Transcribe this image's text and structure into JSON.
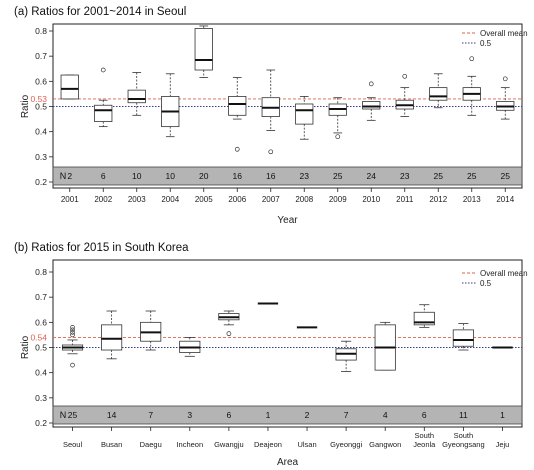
{
  "chart_data": [
    {
      "type": "box",
      "title": "(a) Ratios for 2001~2014 in Seoul",
      "xlabel": "Year",
      "ylabel": "Ratio",
      "ylim": [
        0.2,
        0.8
      ],
      "yticks": [
        "0.2",
        "0.3",
        "0.4",
        "0.5",
        "0.6",
        "0.7",
        "0.8"
      ],
      "mean_label": "0.53",
      "mean_value": 0.53,
      "reference_value": 0.5,
      "legend": {
        "position": "top-right",
        "entries": [
          "Overall mean",
          "0.5"
        ]
      },
      "n_label": "N",
      "categories": [
        "2001",
        "2002",
        "2003",
        "2004",
        "2005",
        "2006",
        "2007",
        "2008",
        "2009",
        "2010",
        "2011",
        "2012",
        "2013",
        "2014"
      ],
      "n": [
        "2",
        "6",
        "10",
        "10",
        "20",
        "16",
        "16",
        "23",
        "25",
        "24",
        "23",
        "25",
        "25",
        "25"
      ],
      "boxes": [
        {
          "low": 0.53,
          "q1": 0.53,
          "median": 0.57,
          "q3": 0.625,
          "high": 0.625,
          "outliers": []
        },
        {
          "low": 0.42,
          "q1": 0.44,
          "median": 0.485,
          "q3": 0.505,
          "high": 0.525,
          "outliers": [
            0.645
          ]
        },
        {
          "low": 0.465,
          "q1": 0.515,
          "median": 0.53,
          "q3": 0.565,
          "high": 0.635,
          "outliers": []
        },
        {
          "low": 0.38,
          "q1": 0.42,
          "median": 0.48,
          "q3": 0.54,
          "high": 0.63,
          "outliers": []
        },
        {
          "low": 0.615,
          "q1": 0.645,
          "median": 0.685,
          "q3": 0.81,
          "high": 0.82,
          "outliers": []
        },
        {
          "low": 0.45,
          "q1": 0.465,
          "median": 0.51,
          "q3": 0.54,
          "high": 0.615,
          "outliers": [
            0.33
          ]
        },
        {
          "low": 0.405,
          "q1": 0.46,
          "median": 0.495,
          "q3": 0.535,
          "high": 0.645,
          "outliers": [
            0.32
          ]
        },
        {
          "low": 0.37,
          "q1": 0.43,
          "median": 0.485,
          "q3": 0.51,
          "high": 0.54,
          "outliers": []
        },
        {
          "low": 0.395,
          "q1": 0.465,
          "median": 0.49,
          "q3": 0.51,
          "high": 0.535,
          "outliers": [
            0.38
          ]
        },
        {
          "low": 0.445,
          "q1": 0.49,
          "median": 0.5,
          "q3": 0.52,
          "high": 0.535,
          "outliers": [
            0.59
          ]
        },
        {
          "low": 0.46,
          "q1": 0.49,
          "median": 0.505,
          "q3": 0.525,
          "high": 0.575,
          "outliers": [
            0.62
          ]
        },
        {
          "low": 0.495,
          "q1": 0.525,
          "median": 0.54,
          "q3": 0.575,
          "high": 0.63,
          "outliers": []
        },
        {
          "low": 0.465,
          "q1": 0.525,
          "median": 0.55,
          "q3": 0.575,
          "high": 0.62,
          "outliers": [
            0.69
          ]
        },
        {
          "low": 0.45,
          "q1": 0.485,
          "median": 0.5,
          "q3": 0.52,
          "high": 0.575,
          "outliers": [
            0.61
          ]
        }
      ]
    },
    {
      "type": "box",
      "title": "(b) Ratios for 2015 in South Korea",
      "xlabel": "Area",
      "ylabel": "Ratio",
      "ylim": [
        0.2,
        0.8
      ],
      "yticks": [
        "0.2",
        "0.3",
        "0.4",
        "0.5",
        "0.6",
        "0.7",
        "0.8"
      ],
      "mean_label": "0.54",
      "mean_value": 0.54,
      "reference_value": 0.5,
      "legend": {
        "position": "top-right",
        "entries": [
          "Overall mean",
          "0.5"
        ]
      },
      "n_label": "N",
      "categories": [
        "Seoul",
        "Busan",
        "Daegu",
        "Incheon",
        "Gwangju",
        "Deajeon",
        "Ulsan",
        "Gyeonggi",
        "Gangwon",
        "South Jeonla",
        "South Gyeongsang",
        "Jeju"
      ],
      "n": [
        "25",
        "14",
        "7",
        "3",
        "6",
        "1",
        "2",
        "7",
        "4",
        "6",
        "11",
        "1"
      ],
      "boxes": [
        {
          "low": 0.475,
          "q1": 0.49,
          "median": 0.5,
          "q3": 0.51,
          "high": 0.53,
          "outliers": [
            0.43,
            0.55,
            0.56,
            0.57,
            0.58
          ]
        },
        {
          "low": 0.455,
          "q1": 0.49,
          "median": 0.535,
          "q3": 0.59,
          "high": 0.645,
          "outliers": []
        },
        {
          "low": 0.49,
          "q1": 0.525,
          "median": 0.56,
          "q3": 0.6,
          "high": 0.645,
          "outliers": []
        },
        {
          "low": 0.465,
          "q1": 0.48,
          "median": 0.5,
          "q3": 0.525,
          "high": 0.54,
          "outliers": []
        },
        {
          "low": 0.59,
          "q1": 0.61,
          "median": 0.62,
          "q3": 0.635,
          "high": 0.645,
          "outliers": [
            0.555
          ]
        },
        {
          "low": 0.675,
          "q1": 0.675,
          "median": 0.675,
          "q3": 0.675,
          "high": 0.675,
          "outliers": []
        },
        {
          "low": 0.58,
          "q1": 0.58,
          "median": 0.58,
          "q3": 0.58,
          "high": 0.58,
          "outliers": []
        },
        {
          "low": 0.405,
          "q1": 0.45,
          "median": 0.475,
          "q3": 0.495,
          "high": 0.525,
          "outliers": []
        },
        {
          "low": 0.41,
          "q1": 0.41,
          "median": 0.5,
          "q3": 0.59,
          "high": 0.6,
          "outliers": []
        },
        {
          "low": 0.58,
          "q1": 0.59,
          "median": 0.6,
          "q3": 0.64,
          "high": 0.67,
          "outliers": []
        },
        {
          "low": 0.49,
          "q1": 0.505,
          "median": 0.53,
          "q3": 0.57,
          "high": 0.595,
          "outliers": []
        },
        {
          "low": 0.5,
          "q1": 0.5,
          "median": 0.5,
          "q3": 0.5,
          "high": 0.5,
          "outliers": []
        }
      ]
    }
  ]
}
